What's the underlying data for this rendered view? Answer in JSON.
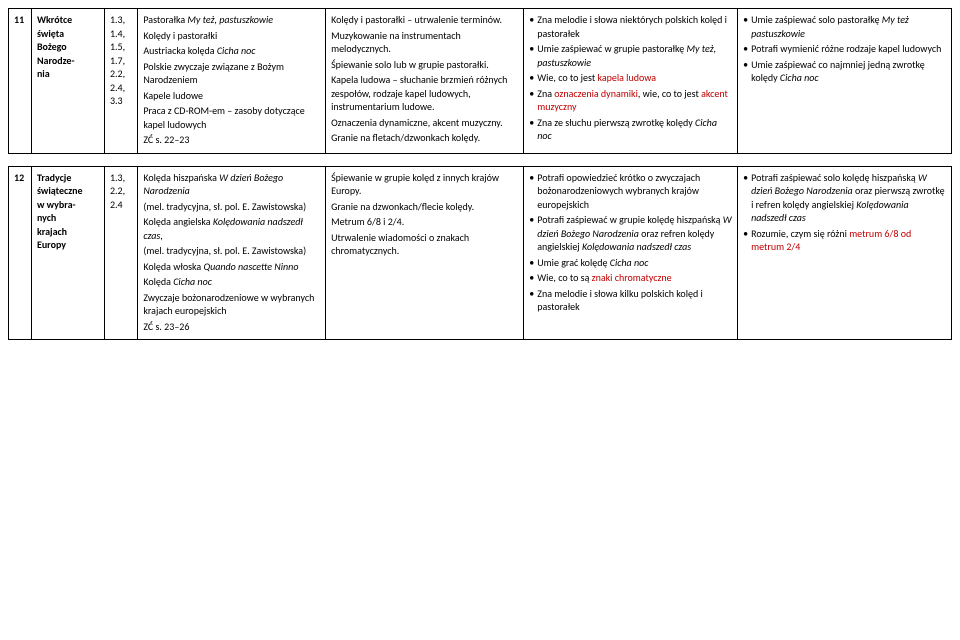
{
  "rows": [
    {
      "num": "11",
      "topic_lines": [
        "Wkrótce",
        "święta",
        "Bożego",
        "Narodze-",
        "nia"
      ],
      "refs": [
        "1.3,",
        "1.4,",
        "1.5,",
        "1.7,",
        "2.2,",
        "2.4,",
        "3.3"
      ],
      "content": [
        {
          "t": "Pastorałka ",
          "tail_italic": "My też, pastuszkowie"
        },
        {
          "t": "Kolędy i pastorałki"
        },
        {
          "t": "Austriacka kolęda ",
          "tail_italic": "Cicha noc"
        },
        {
          "t": "Polskie zwyczaje związane z Bożym Narodzeniem"
        },
        {
          "t": "Kapele ludowe"
        },
        {
          "t": "Praca z CD-ROM-em – zasoby dotyczące kapel ludowych"
        },
        {
          "t": "ZĆ s. 22–23"
        }
      ],
      "activities": [
        "Kolędy i pastorałki – utrwalenie terminów.",
        "Muzykowanie na instrumentach melodycznych.",
        "Śpiewanie solo lub w grupie pastorałki.",
        "Kapela ludowa – słuchanie brzmień różnych zespołów, rodzaje kapel ludowych, instrumentarium ludowe.",
        "Oznaczenia dynamiczne, akcent muzyczny.",
        "Granie na fletach/dzwonkach kolędy."
      ],
      "outcomes1": [
        {
          "parts": [
            {
              "t": "Zna melodie i słowa niektórych polskich kolęd i pastorałek"
            }
          ]
        },
        {
          "parts": [
            {
              "t": "Umie zaśpiewać w grupie pasto­rałkę "
            },
            {
              "t": "My też, pastuszkowie",
              "italic": true
            }
          ]
        },
        {
          "parts": [
            {
              "t": "Wie, co to jest "
            },
            {
              "t": "kapela ludowa",
              "red": true
            }
          ]
        },
        {
          "parts": [
            {
              "t": "Zna "
            },
            {
              "t": "oznaczenia dynamiki",
              "red": true
            },
            {
              "t": ", wie, co to jest "
            },
            {
              "t": "akcent muzyczny",
              "red": true
            }
          ]
        },
        {
          "parts": [
            {
              "t": "Zna ze słuchu pierwszą zwrotkę kolędy "
            },
            {
              "t": "Cicha noc",
              "italic": true
            }
          ]
        }
      ],
      "outcomes2": [
        {
          "parts": [
            {
              "t": "Umie zaśpiewać solo pastorałkę "
            },
            {
              "t": "My też pastuszkowie",
              "italic": true
            }
          ]
        },
        {
          "parts": [
            {
              "t": "Potrafi wymienić różne rodzaje kapel ludowych"
            }
          ]
        },
        {
          "parts": [
            {
              "t": "Umie zaśpiewać co najmniej jedną zwrotkę kolędy "
            },
            {
              "t": "Cicha noc",
              "italic": true
            }
          ]
        }
      ]
    },
    {
      "num": "12",
      "topic_lines": [
        "Tradycje",
        "świąteczne",
        "w wybra-",
        "nych",
        "krajach",
        "Europy"
      ],
      "refs": [
        "1.3,",
        "2.2,",
        "2.4"
      ],
      "content": [
        {
          "t": "Kolęda hiszpańska ",
          "tail_italic": "W dzień Bożego Narodzenia"
        },
        {
          "t": "(mel. tradycyjna, sł. pol. E. Zawistowska)"
        },
        {
          "t": "Kolęda angielska ",
          "tail_italic": "Kolędowania nadszedł czas",
          "tail_after": ","
        },
        {
          "t": "(mel. tradycyjna, sł. pol. E. Zawistowska)"
        },
        {
          "t": "Kolęda włoska ",
          "tail_italic": "Quando nascette Ninno"
        },
        {
          "t": "Kolęda ",
          "tail_italic": "Cicha noc"
        },
        {
          "t": "Zwyczaje bożonarodzeniowe w wybranych krajach europejskich"
        },
        {
          "t": "ZĆ s. 23–26"
        }
      ],
      "activities": [
        "Śpiewanie w grupie kolęd z innych krajów Europy.",
        "Granie na dzwonkach/flecie kolędy.",
        "Metrum 6/8 i 2/4.",
        "Utrwalenie wiadomości o znakach chromatycznych."
      ],
      "outcomes1": [
        {
          "parts": [
            {
              "t": "Potrafi opowiedzieć krótko o zwyczajach bożonarodzenio­wych wybranych krajów europejskich"
            }
          ]
        },
        {
          "parts": [
            {
              "t": "Potrafi zaśpiewać w grupie ko­lędę hiszpańską "
            },
            {
              "t": "W dzień Bożego Narodzenia",
              "italic": true
            },
            {
              "t": " oraz refren kolędy angielskiej "
            },
            {
              "t": "Kolędowania nad­szedł czas",
              "italic": true
            }
          ]
        },
        {
          "parts": [
            {
              "t": "Umie grać kolędę "
            },
            {
              "t": "Cicha noc",
              "italic": true
            }
          ]
        },
        {
          "parts": [
            {
              "t": "Wie, co to są "
            },
            {
              "t": "znaki chromatycz­ne",
              "red": true
            }
          ]
        },
        {
          "parts": [
            {
              "t": "Zna melodie i słowa kilku pol­skich kolęd i pastorałek"
            }
          ]
        }
      ],
      "outcomes2": [
        {
          "parts": [
            {
              "t": "Potrafi zaśpiewać solo kolędę hiszpańską "
            },
            {
              "t": "W dzień Bożego Na­rodzenia",
              "italic": true
            },
            {
              "t": " oraz pierwszą zwrotkę i refren kolędy angielskiej "
            },
            {
              "t": "Kolę­dowania nadszedł czas",
              "italic": true
            }
          ]
        },
        {
          "parts": [
            {
              "t": "Rozumie, czym się różni "
            },
            {
              "t": "metrum 6/8 od metrum 2/4",
              "red": true
            }
          ]
        }
      ]
    }
  ]
}
